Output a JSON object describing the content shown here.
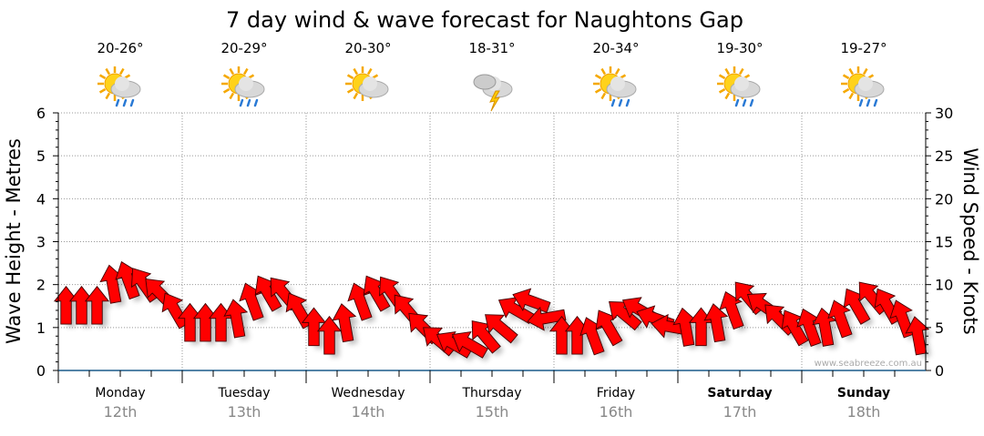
{
  "chart_data": {
    "type": "scatter",
    "title": "7 day wind & wave forecast for Naughtons Gap",
    "ylabel": "Wave Height - Metres",
    "y2label": "Wind Speed - Knots",
    "ylim": [
      0,
      6
    ],
    "y2lim": [
      0,
      30
    ],
    "yticks": [
      "0",
      "1",
      "2",
      "3",
      "4",
      "5",
      "6"
    ],
    "y2ticks": [
      "0",
      "5",
      "10",
      "15",
      "20",
      "25",
      "30"
    ],
    "watermark": "www.seabreeze.com.au",
    "days": [
      {
        "name": "Monday",
        "date": "12th",
        "temp": "20-26°",
        "icon": "sun-cloud-rain-icon",
        "bold": false
      },
      {
        "name": "Tuesday",
        "date": "13th",
        "temp": "20-29°",
        "icon": "sun-cloud-rain-icon",
        "bold": false
      },
      {
        "name": "Wednesday",
        "date": "14th",
        "temp": "20-30°",
        "icon": "sun-cloud-icon",
        "bold": false
      },
      {
        "name": "Thursday",
        "date": "15th",
        "temp": "18-31°",
        "icon": "storm-icon",
        "bold": false
      },
      {
        "name": "Friday",
        "date": "16th",
        "temp": "20-34°",
        "icon": "sun-cloud-rain-icon",
        "bold": false
      },
      {
        "name": "Saturday",
        "date": "17th",
        "temp": "19-30°",
        "icon": "sun-cloud-rain-icon",
        "bold": true
      },
      {
        "name": "Sunday",
        "date": "18th",
        "temp": "19-27°",
        "icon": "sun-cloud-rain-icon",
        "bold": true
      }
    ],
    "wind_knots": [
      9.5,
      9.5,
      9.5,
      12,
      12.5,
      12,
      11,
      9,
      7.5,
      7.5,
      7.5,
      8,
      10,
      11,
      11,
      9,
      7,
      6,
      7.5,
      10,
      11,
      11,
      9,
      7,
      5.5,
      5,
      5,
      6,
      7,
      9,
      10,
      8,
      6,
      6,
      6,
      7,
      8.5,
      9,
      8,
      7,
      7,
      7,
      7.5,
      9,
      10.5,
      9.5,
      8,
      7,
      7,
      7,
      8,
      9.5,
      10.5,
      9.5,
      8,
      6
    ],
    "wind_arrow_bearing_deg": [
      0,
      0,
      0,
      -10,
      -20,
      -35,
      -45,
      -30,
      0,
      0,
      0,
      -10,
      -20,
      -30,
      -40,
      -30,
      0,
      0,
      -10,
      -20,
      -30,
      -35,
      -40,
      -45,
      -50,
      -60,
      -60,
      -40,
      -50,
      -60,
      -70,
      -100,
      0,
      0,
      -20,
      -30,
      -50,
      -60,
      -70,
      -80,
      -10,
      0,
      -10,
      -20,
      -40,
      -55,
      -45,
      -30,
      -20,
      -10,
      -20,
      -30,
      -40,
      -30,
      -20,
      -10
    ],
    "arrow_color": "#ff0000"
  }
}
